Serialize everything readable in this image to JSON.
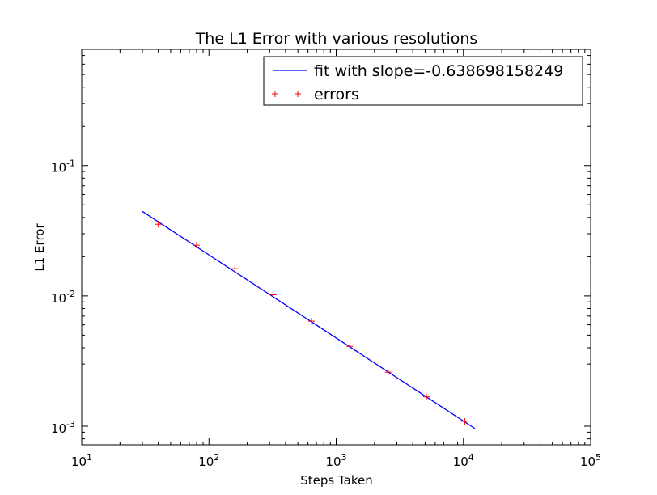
{
  "chart_data": {
    "type": "scatter",
    "title": "The L1 Error with various resolutions",
    "xlabel": "Steps Taken",
    "ylabel": "L1 Error",
    "xscale": "log",
    "yscale": "log",
    "xlim": [
      10,
      100000
    ],
    "ylim": [
      0.00072,
      0.78
    ],
    "grid": false,
    "legend_position": "top-right",
    "x_ticks": [
      {
        "value": 10,
        "base": "10",
        "exp": "1"
      },
      {
        "value": 100,
        "base": "10",
        "exp": "2"
      },
      {
        "value": 1000,
        "base": "10",
        "exp": "3"
      },
      {
        "value": 10000,
        "base": "10",
        "exp": "4"
      },
      {
        "value": 100000,
        "base": "10",
        "exp": "5"
      }
    ],
    "y_ticks": [
      {
        "value": 0.001,
        "base": "10",
        "exp": "-3"
      },
      {
        "value": 0.01,
        "base": "10",
        "exp": "-2"
      },
      {
        "value": 0.1,
        "base": "10",
        "exp": "-1"
      }
    ],
    "series": [
      {
        "name": "fit with slope=-0.638698158249",
        "kind": "line",
        "color": "#0000ff",
        "x": [
          30,
          12300
        ],
        "y": [
          0.0445,
          0.00096
        ]
      },
      {
        "name": "errors",
        "kind": "marker",
        "marker": "+",
        "color": "#ff0000",
        "x": [
          40,
          80,
          160,
          320,
          640,
          1280,
          2560,
          5120,
          10240
        ],
        "y": [
          0.0355,
          0.0245,
          0.0162,
          0.0102,
          0.0064,
          0.0041,
          0.0026,
          0.00168,
          0.00109
        ]
      }
    ]
  }
}
